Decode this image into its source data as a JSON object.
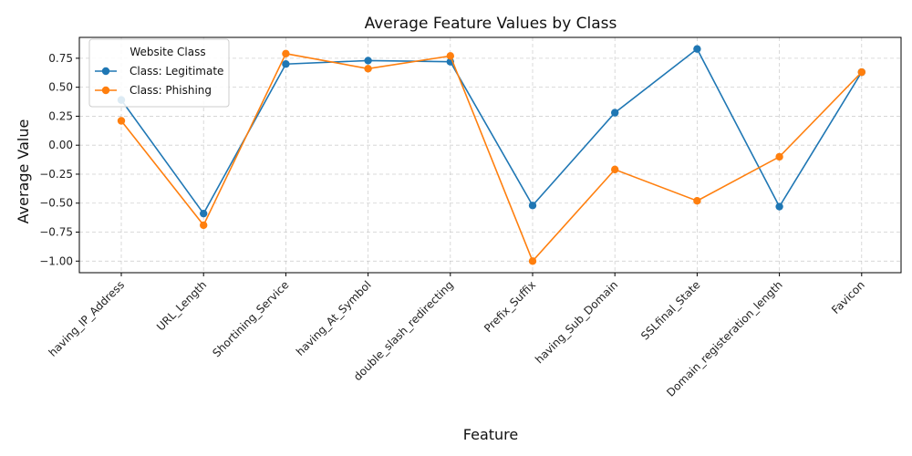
{
  "chart_data": {
    "type": "line",
    "title": "Average Feature Values by Class",
    "xlabel": "Feature",
    "ylabel": "Average Value",
    "categories": [
      "having_IP_Address",
      "URL_Length",
      "Shortining_Service",
      "having_At_Symbol",
      "double_slash_redirecting",
      "Prefix_Suffix",
      "having_Sub_Domain",
      "SSLfinal_State",
      "Domain_registeration_length",
      "Favicon"
    ],
    "ylim": [
      -1.1,
      0.93
    ],
    "yticks": [
      "−1.00",
      "−0.75",
      "−0.50",
      "−0.25",
      "0.00",
      "0.25",
      "0.50",
      "0.75"
    ],
    "ytick_values": [
      -1.0,
      -0.75,
      -0.5,
      -0.25,
      0.0,
      0.25,
      0.5,
      0.75
    ],
    "grid": true,
    "legend": {
      "title": "Website Class",
      "placement": "upper-left"
    },
    "series": [
      {
        "name": "Class: Legitimate",
        "color": "#1f77b4",
        "values": [
          0.39,
          -0.59,
          0.7,
          0.73,
          0.72,
          -0.52,
          0.28,
          0.83,
          -0.53,
          0.63
        ]
      },
      {
        "name": "Class: Phishing",
        "color": "#ff7f0e",
        "values": [
          0.21,
          -0.69,
          0.79,
          0.66,
          0.77,
          -1.0,
          -0.21,
          -0.48,
          -0.1,
          0.63
        ]
      }
    ]
  }
}
